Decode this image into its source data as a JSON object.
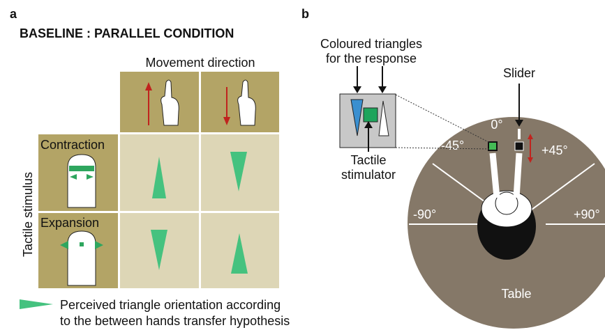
{
  "panel_a": {
    "label": "a",
    "title": "BASELINE : PARALLEL CONDITION",
    "column_header": "Movement direction",
    "row_header": "Tactile stimulus",
    "rows": [
      "Contraction",
      "Expansion"
    ],
    "legend": [
      "Perceived triangle orientation according",
      "to the between hands transfer hypothesis"
    ]
  },
  "panel_b": {
    "label": "b",
    "response_label": [
      "Coloured triangles",
      "for the response"
    ],
    "slider_label": "Slider",
    "stimulator_label": [
      "Tactile",
      "stimulator"
    ],
    "angles": [
      "0°",
      "-45°",
      "+45°",
      "-90°",
      "+90°"
    ],
    "table_label": "Table"
  }
}
